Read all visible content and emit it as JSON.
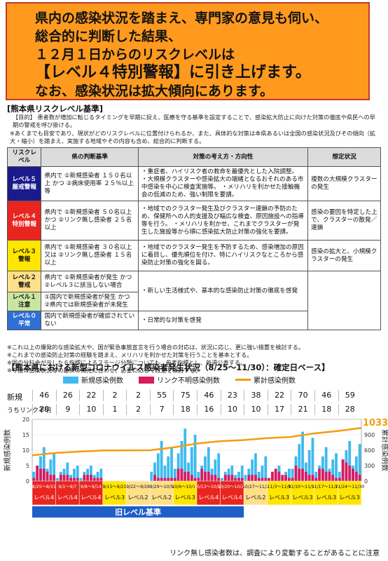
{
  "banner": {
    "line1": "県内の感染状況を踏まえ、専門家の意見も伺い、",
    "line2": "総合的に判断した結果、",
    "line3": "１２月１日からのリスクレベルは",
    "line4": "【レベル４特別警報】に引き上げます。",
    "line5": "なお、感染状況は拡大傾向にあります。"
  },
  "criteria": {
    "title": "[熊本県リスクレベル基準]",
    "purpose": "【目的】 患者数が増加に転じるタイミングを早期に捉え、医療を守る基準を設定することで、感染拡大防止に向けた対策の徹底や県民への早期の警戒を呼び掛ける。",
    "note": "※あくまでも目安であり、現状がどのリスクレベルに位置付けられるか、また、具体的な対策は本県あるいは全国の感染状況及びその傾向（拡大・縮小）を踏まえ、実施する地域やその内容も含め、総合的に判断する。",
    "headers": [
      "リスクレベル",
      "県の判断基準",
      "対策の考え方・方向性",
      "想定状況"
    ],
    "rows": [
      {
        "level": "レベル５ 厳戒警報",
        "criteria": "県内で ①新規感染者 １５０名以上 かつ ②病床使用率 ２５％以上 等",
        "policy": "・重症者、ハイリスク者の救命を最優先とした入院調整。 ・大規模クラスターや感染拡大の端緒となるおそれのある市中感染を中心に検査実施等。 ・メリハリを利かせた接触機会の低減のため、強い制限を要請。",
        "situation": "複数の大規模クラスターの発生"
      },
      {
        "level": "レベル４ 特別警報",
        "criteria": "県内で ①新規感染者 ５０名以上 かつ ②リンク無し感染者 ２５名以上",
        "policy": "・地域でのクラスター発生及びクラスター連鎖の予防のため、保健所への人的支援及び幅広な検査、原因施設への指導等を行う。 ・メリハリを利かせ、これまでクラスターが発生した施設等から順に感染拡大防止対策の強化を要請。",
        "situation": "感染の要因を特定した上で、クラスターの散発／連鎖"
      },
      {
        "level": "レベル３ 警報",
        "criteria": "県内で ①新規感染者 ３０名以上 又は ②リンク無し感染者 １５名以上",
        "policy": "・地域でのクラスター発生を予防するため、感染増加の原因に着目し、優先順位を付け、特にハイリスクなところから感染防止対策の強化を図る。",
        "situation": "感染の拡大と、小規模クラスターの発生"
      },
      {
        "level": "レベル２ 警戒",
        "criteria": "県内で ①新規感染者が発生 かつ ②レベル３に該当しない場合",
        "policy": "・新しい生活様式や、基本的な感染防止対策の徹底を啓発",
        "situation": ""
      },
      {
        "level": "レベル１ 注意",
        "criteria": "①国内で新規感染者が発生 かつ ②県内では新規感染者が未発生",
        "policy": "",
        "situation": ""
      },
      {
        "level": "レベル０ 平常",
        "criteria": "国内で新規感染者が確認されていない",
        "policy": "・日常的な対策を啓発",
        "situation": ""
      }
    ],
    "footnotes": [
      "※これ以上の爆発的な感染拡大や、国が緊急事態宣言を行う場合の対応は、状況に応じ、更に強い措置を検討する。",
      "※これまでの感染防止対策の経験を踏まえ、メリハリを利かせた対策を行うことを基本とする。",
      "※国の分科会が示した６指標によるステージ分類についても、参考指標とし、毎週公表する。",
      "※今後の感染状況等の最新の知見に合わせ、必要に応じて改定を検討する。"
    ]
  },
  "chart_section": {
    "title": "【熊本県における新型コロナウイルス感染者発生状況（8/25～11/30）：確定日ベース】",
    "legend": {
      "new": "新規感染例数",
      "unlinked": "リンク不明感染例数",
      "cumulative": "累計感染例数"
    },
    "row_new_label": "新規",
    "row_unlinked_label": "うちリンク不明",
    "weekly_new": [
      "46",
      "26",
      "22",
      "2",
      "2",
      "55",
      "75",
      "46",
      "23",
      "38",
      "22",
      "70",
      "46",
      "59"
    ],
    "weekly_unlinked": [
      "20",
      "9",
      "10",
      "1",
      "2",
      "7",
      "18",
      "16",
      "10",
      "10",
      "17",
      "21",
      "18",
      "28"
    ],
    "footer_note": "リンク無し感染者数は、調査により変動することがあることに注意"
  },
  "chart_data": {
    "type": "bar",
    "title": "熊本県における新型コロナウイルス感染者発生状況（8/25～11/30）：確定日ベース",
    "ylabel_left": "新規感染例数",
    "ylabel_right": "累計感染例数",
    "ylim_left": [
      0,
      20
    ],
    "ylim_right": [
      0,
      1200
    ],
    "cumulative_final": 1033,
    "weeks": [
      "8/25～8/31",
      "9/1～9/7",
      "9/8～9/14",
      "9/15～9/21",
      "9/22～9/28",
      "9/29～10/5",
      "10/6～10/12",
      "10/13～10/19",
      "10/20～10/26",
      "10/27～11/2",
      "11/3～11/9",
      "11/10～11/16",
      "11/17～11/23",
      "11/24～11/30"
    ],
    "levels": [
      "レベル4",
      "レベル4",
      "レベル4",
      "レベル3",
      "レベル2",
      "レベル2",
      "レベル3",
      "レベル4",
      "レベル4",
      "レベル2",
      "レベル3",
      "レベル3",
      "レベル3",
      "レベル3"
    ],
    "old_level_label": "旧レベル基準",
    "colors": {
      "new": "#3ebaf0",
      "unlinked": "#d81b60",
      "cumulative": "#f39c12"
    }
  }
}
